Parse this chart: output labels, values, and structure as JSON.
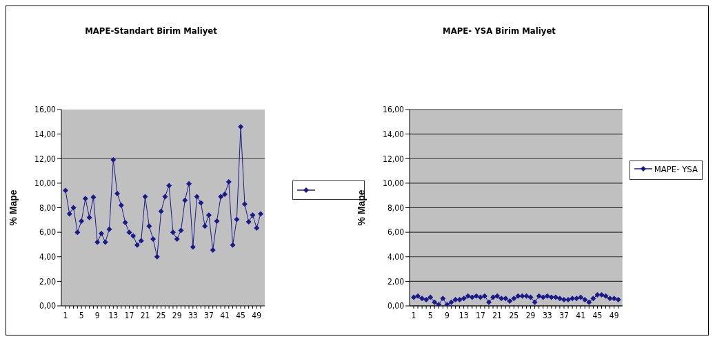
{
  "chart_data": [
    {
      "type": "line",
      "title": "MAPE-Standart  Birim Maliyet",
      "ylabel": "% Mape",
      "categories": [
        "1",
        null,
        null,
        null,
        "5",
        null,
        null,
        null,
        "9",
        null,
        null,
        null,
        "13",
        null,
        null,
        null,
        "17",
        null,
        null,
        null,
        "21",
        null,
        null,
        null,
        "25",
        null,
        null,
        null,
        "29",
        null,
        null,
        null,
        "33",
        null,
        null,
        null,
        "37",
        null,
        null,
        null,
        "41",
        null,
        null,
        null,
        "45",
        null,
        null,
        null,
        "49",
        null
      ],
      "series": [
        {
          "color": "#1a1a8c",
          "values": [
            9.4,
            7.5,
            8.0,
            6.0,
            6.9,
            8.75,
            7.2,
            8.85,
            5.2,
            5.9,
            5.2,
            6.25,
            11.9,
            9.15,
            8.2,
            6.8,
            6.0,
            5.7,
            4.95,
            5.3,
            8.9,
            6.5,
            5.45,
            4.0,
            7.7,
            8.9,
            9.8,
            6.0,
            5.45,
            6.15,
            8.6,
            9.95,
            4.8,
            8.9,
            8.4,
            6.5,
            7.4,
            4.55,
            6.9,
            8.9,
            9.1,
            10.1,
            4.95,
            7.05,
            14.6,
            8.3,
            6.85,
            7.4,
            6.35,
            7.5
          ]
        }
      ],
      "ylim": [
        0,
        16
      ],
      "yticks": [
        {
          "value": 0,
          "label": "0,00"
        },
        {
          "value": 2,
          "label": "2,00"
        },
        {
          "value": 4,
          "label": "4,00"
        },
        {
          "value": 6,
          "label": "6,00"
        },
        {
          "value": 8,
          "label": "8,00"
        },
        {
          "value": 10,
          "label": "10,00"
        },
        {
          "value": 12,
          "label": "12,00"
        },
        {
          "value": 14,
          "label": "14,00"
        },
        {
          "value": 16,
          "label": "16,00"
        }
      ],
      "ref_lines": [
        {
          "axis": "y",
          "value": 12,
          "color": "#404040"
        }
      ],
      "marker": "diamond",
      "line_style": "solid"
    },
    {
      "type": "line",
      "title": "MAPE- YSA Birim Maliyet",
      "ylabel": "% Mape",
      "categories": [
        "1",
        null,
        null,
        null,
        "5",
        null,
        null,
        null,
        "9",
        null,
        null,
        null,
        "13",
        null,
        null,
        null,
        "17",
        null,
        null,
        null,
        "21",
        null,
        null,
        null,
        "25",
        null,
        null,
        null,
        "29",
        null,
        null,
        null,
        "33",
        null,
        null,
        null,
        "37",
        null,
        null,
        null,
        "41",
        null,
        null,
        null,
        "45",
        null,
        null,
        null,
        "49",
        null
      ],
      "series": [
        {
          "name": "MAPE- YSA",
          "color": "#1a1a8c",
          "values": [
            0.7,
            0.8,
            0.6,
            0.5,
            0.7,
            0.3,
            0.1,
            0.6,
            0.1,
            0.3,
            0.5,
            0.5,
            0.6,
            0.8,
            0.7,
            0.8,
            0.7,
            0.8,
            0.3,
            0.7,
            0.8,
            0.6,
            0.6,
            0.4,
            0.6,
            0.8,
            0.8,
            0.8,
            0.7,
            0.3,
            0.8,
            0.7,
            0.8,
            0.7,
            0.7,
            0.6,
            0.5,
            0.5,
            0.6,
            0.6,
            0.7,
            0.5,
            0.3,
            0.6,
            0.9,
            0.9,
            0.8,
            0.6,
            0.6,
            0.5
          ]
        }
      ],
      "ylim": [
        0,
        16
      ],
      "yticks": [
        {
          "value": 0,
          "label": "0,00"
        },
        {
          "value": 2,
          "label": "2,00"
        },
        {
          "value": 4,
          "label": "4,00"
        },
        {
          "value": 6,
          "label": "6,00"
        },
        {
          "value": 8,
          "label": "8,00"
        },
        {
          "value": 10,
          "label": "10,00"
        },
        {
          "value": 12,
          "label": "12,00"
        },
        {
          "value": 14,
          "label": "14,00"
        },
        {
          "value": 16,
          "label": "16,00"
        }
      ],
      "grid": "y",
      "legend": "right",
      "marker": "diamond",
      "line_style": "solid"
    }
  ]
}
